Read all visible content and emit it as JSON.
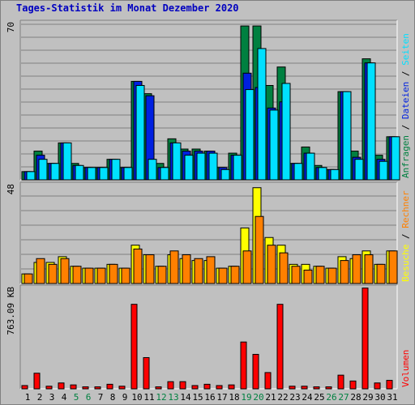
{
  "chart_data": {
    "type": "bar",
    "title": "Tages-Statistik im Monat Dezember 2020",
    "categories": [
      "1",
      "2",
      "3",
      "4",
      "5",
      "6",
      "7",
      "8",
      "9",
      "10",
      "11",
      "12",
      "13",
      "14",
      "15",
      "16",
      "17",
      "18",
      "19",
      "20",
      "21",
      "22",
      "23",
      "24",
      "25",
      "26",
      "27",
      "28",
      "29",
      "30",
      "31"
    ],
    "weekend_days": [
      "5",
      "6",
      "12",
      "13",
      "19",
      "20",
      "26",
      "27"
    ],
    "colors": {
      "anfragen": "#008040",
      "dateien": "#0020e0",
      "seiten": "#00e0ff",
      "besuche": "#ffff00",
      "rechner": "#ff8000",
      "volumen": "#ff0000",
      "weekend_label": "#008040",
      "weekday_label": "#000000",
      "title": "#0000c0"
    },
    "panels": [
      {
        "id": "hits",
        "scale_label": "70",
        "ymax": 77,
        "series": [
          {
            "name": "Anfragen",
            "color": "#008040",
            "values": [
              4,
              14,
              8,
              18,
              8,
              6,
              6,
              10,
              6,
              48,
              42,
              8,
              20,
              15,
              15,
              14,
              6,
              13,
              75,
              75,
              46,
              55,
              8,
              16,
              7,
              5,
              43,
              14,
              59,
              12,
              21
            ]
          },
          {
            "name": "Dateien",
            "color": "#0020e0",
            "values": [
              4,
              12,
              8,
              18,
              7,
              6,
              6,
              10,
              6,
              48,
              41,
              6,
              18,
              14,
              14,
              14,
              6,
              12,
              52,
              45,
              35,
              38,
              8,
              13,
              6,
              5,
              43,
              11,
              57,
              10,
              21
            ]
          },
          {
            "name": "Seiten",
            "color": "#00e0ff",
            "values": [
              4,
              10,
              8,
              18,
              7,
              6,
              6,
              10,
              6,
              46,
              10,
              6,
              18,
              12,
              13,
              13,
              5,
              12,
              44,
              64,
              34,
              47,
              8,
              13,
              6,
              5,
              43,
              10,
              57,
              9,
              21
            ]
          }
        ],
        "axis_label": [
          {
            "text": "Anfragen",
            "color": "#008040"
          },
          {
            "text": " / ",
            "color": "#000000"
          },
          {
            "text": "Dateien",
            "color": "#0020e0"
          },
          {
            "text": " / ",
            "color": "#000000"
          },
          {
            "text": "Seiten",
            "color": "#00e0ff"
          }
        ]
      },
      {
        "id": "visits",
        "scale_label": "48",
        "ymax": 52,
        "series": [
          {
            "name": "Besuche",
            "color": "#ffff00",
            "values": [
              5,
              11,
              11,
              14,
              9,
              8,
              8,
              10,
              8,
              20,
              15,
              9,
              15,
              13,
              12,
              12,
              8,
              9,
              29,
              50,
              24,
              20,
              10,
              10,
              9,
              8,
              14,
              13,
              17,
              10,
              17
            ]
          },
          {
            "name": "Rechner",
            "color": "#ff8000",
            "values": [
              5,
              13,
              10,
              13,
              9,
              8,
              8,
              10,
              8,
              18,
              15,
              9,
              17,
              15,
              13,
              14,
              8,
              9,
              17,
              35,
              20,
              16,
              9,
              7,
              9,
              8,
              12,
              15,
              15,
              10,
              17
            ]
          }
        ],
        "axis_label": [
          {
            "text": "Besuche",
            "color": "#ffff00"
          },
          {
            "text": " / ",
            "color": "#000000"
          },
          {
            "text": "Rechner",
            "color": "#ff8000"
          }
        ]
      },
      {
        "id": "volume",
        "scale_label": "763.09 KB",
        "ymax": 785,
        "series": [
          {
            "name": "Volumen",
            "color": "#ff0000",
            "values": [
              25,
              120,
              20,
              45,
              30,
              15,
              15,
              35,
              20,
              650,
              240,
              15,
              55,
              55,
              25,
              35,
              25,
              30,
              360,
              265,
              125,
              650,
              20,
              20,
              15,
              15,
              105,
              60,
              775,
              45,
              65
            ]
          }
        ],
        "axis_label": [
          {
            "text": "Volumen",
            "color": "#ff0000"
          }
        ]
      }
    ]
  }
}
